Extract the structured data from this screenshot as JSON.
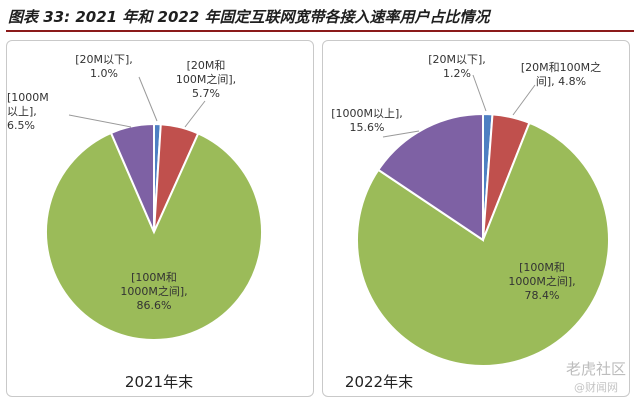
{
  "title": "图表 33:  2021 年和 2022 年固定互联网宽带各接入速率用户占比情况",
  "colors": {
    "lt20": "#4e7fc2",
    "20to100": "#c0504d",
    "100to1000": "#9bbb59",
    "ge1000": "#7e61a4",
    "rule": "#8b1a1a"
  },
  "chart_data": [
    {
      "type": "pie",
      "title": "2021年末",
      "slices": [
        {
          "key": "lt20",
          "label": "[20M以下],\n1.0%",
          "value": 1.0
        },
        {
          "key": "20to100",
          "label": "[20M和\n100M之间],\n5.7%",
          "value": 5.7
        },
        {
          "key": "100to1000",
          "label": "[100M和\n1000M之间],\n86.6%",
          "value": 86.6
        },
        {
          "key": "ge1000",
          "label": "[1000M\n以上],\n6.5%",
          "value": 6.5
        }
      ]
    },
    {
      "type": "pie",
      "title": "2022年末",
      "slices": [
        {
          "key": "lt20",
          "label": "[20M以下],\n1.2%",
          "value": 1.2
        },
        {
          "key": "20to100",
          "label": "[20M和100M之\n间], 4.8%",
          "value": 4.8
        },
        {
          "key": "100to1000",
          "label": "[100M和\n1000M之间],\n78.4%",
          "value": 78.4
        },
        {
          "key": "ge1000",
          "label": "[1000M以上],\n15.6%",
          "value": 15.6
        }
      ]
    }
  ],
  "watermark": {
    "main": "老虎社区",
    "sub": "@财闻网"
  }
}
